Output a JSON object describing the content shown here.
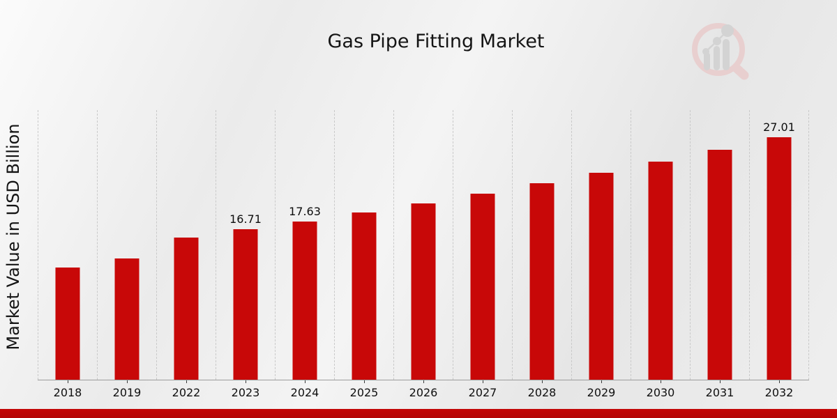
{
  "title": "Gas Pipe Fitting Market",
  "colors": {
    "bar": "#c80808",
    "strip": "#b40505",
    "grid": "#c9c9c9",
    "axis": "#9c9c9c",
    "text": "#141414",
    "logo_ring": "#e8cfcf",
    "logo_gray": "#d3d3d3"
  },
  "logo": {
    "name": "magnifier-bar-chart-watermark"
  },
  "chart_data": {
    "type": "bar",
    "title": "Gas Pipe Fitting Market",
    "xlabel": "",
    "ylabel": "Market Value in USD Billion",
    "ylim": [
      0,
      30
    ],
    "grid": "vertical-dashed-at-category-boundaries",
    "legend": "none",
    "bar_color": "#c80808",
    "categories": [
      "2018",
      "2019",
      "2022",
      "2023",
      "2024",
      "2025",
      "2026",
      "2027",
      "2028",
      "2029",
      "2030",
      "2031",
      "2032"
    ],
    "values": [
      12.45,
      13.5,
      15.83,
      16.71,
      17.63,
      18.6,
      19.62,
      20.7,
      21.83,
      23.02,
      24.28,
      25.61,
      27.01
    ],
    "data_labels": [
      "",
      "",
      "",
      "16.71",
      "17.63",
      "",
      "",
      "",
      "",
      "",
      "",
      "",
      "27.01"
    ]
  }
}
